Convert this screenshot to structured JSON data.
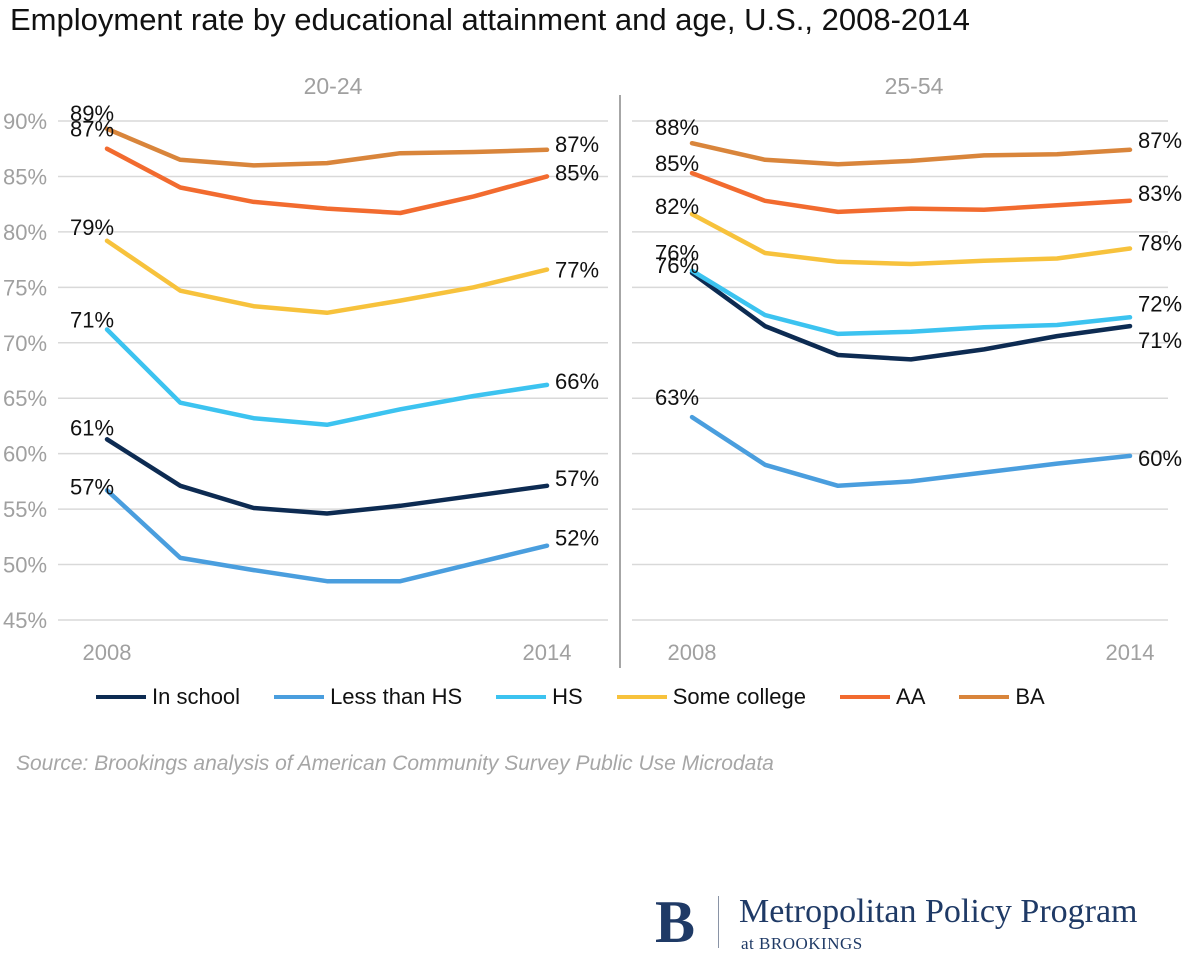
{
  "chart_data": {
    "type": "line",
    "title": "Employment rate by educational attainment and age, U.S., 2008-2014",
    "y_ticks": [
      "90%",
      "85%",
      "80%",
      "75%",
      "70%",
      "65%",
      "60%",
      "55%",
      "50%",
      "45%"
    ],
    "ylim": [
      45,
      90
    ],
    "years": [
      2008,
      2009,
      2010,
      2011,
      2012,
      2013,
      2014
    ],
    "series": [
      {
        "name": "In school",
        "color": "#0d2b52"
      },
      {
        "name": "Less than HS",
        "color": "#4a9ede"
      },
      {
        "name": "HS",
        "color": "#3cc3f0"
      },
      {
        "name": "Some college",
        "color": "#f7c23c"
      },
      {
        "name": "AA",
        "color": "#f26b2f"
      },
      {
        "name": "BA",
        "color": "#d9853b"
      }
    ],
    "panels": [
      {
        "title": "20-24",
        "x_start_label": "2008",
        "x_end_label": "2014",
        "values": {
          "In school": [
            61.3,
            57.1,
            55.1,
            54.6,
            55.3,
            56.2,
            57.1
          ],
          "Less than HS": [
            56.7,
            50.6,
            49.5,
            48.5,
            48.5,
            50.1,
            51.7
          ],
          "HS": [
            71.2,
            64.6,
            63.2,
            62.6,
            64.0,
            65.2,
            66.2
          ],
          "Some college": [
            79.2,
            74.7,
            73.3,
            72.7,
            73.8,
            75.0,
            76.6
          ],
          "AA": [
            87.5,
            84.0,
            82.7,
            82.1,
            81.7,
            83.2,
            85.0
          ],
          "BA": [
            89.3,
            86.5,
            86.0,
            86.2,
            87.1,
            87.2,
            87.4
          ]
        },
        "start_labels": {
          "In school": "61%",
          "Less than HS": "57%",
          "HS": "71%",
          "Some college": "79%",
          "AA": "87%",
          "BA": "89%"
        },
        "end_labels": {
          "In school": "57%",
          "Less than HS": "52%",
          "HS": "66%",
          "Some college": "77%",
          "AA": "85%",
          "BA": "87%"
        }
      },
      {
        "title": "25-54",
        "x_start_label": "2008",
        "x_end_label": "2014",
        "values": {
          "In school": [
            76.3,
            71.5,
            68.9,
            68.5,
            69.4,
            70.6,
            71.5
          ],
          "Less than HS": [
            63.3,
            59.0,
            57.1,
            57.5,
            58.3,
            59.1,
            59.8
          ],
          "HS": [
            76.5,
            72.5,
            70.8,
            71.0,
            71.4,
            71.6,
            72.3
          ],
          "Some college": [
            81.6,
            78.1,
            77.3,
            77.1,
            77.4,
            77.6,
            78.5
          ],
          "AA": [
            85.3,
            82.8,
            81.8,
            82.1,
            82.0,
            82.4,
            82.8
          ],
          "BA": [
            88.0,
            86.5,
            86.1,
            86.4,
            86.9,
            87.0,
            87.4
          ]
        },
        "start_labels": {
          "In school": "76%",
          "Less than HS": "63%",
          "HS": "76%",
          "Some college": "82%",
          "AA": "85%",
          "BA": "88%"
        },
        "end_labels": {
          "In school": "71%",
          "Less than HS": "60%",
          "HS": "72%",
          "Some college": "78%",
          "AA": "83%",
          "BA": "87%"
        }
      }
    ]
  },
  "legend": [
    {
      "name": "In school",
      "color": "#0d2b52"
    },
    {
      "name": "Less than HS",
      "color": "#4a9ede"
    },
    {
      "name": "HS",
      "color": "#3cc3f0"
    },
    {
      "name": "Some college",
      "color": "#f7c23c"
    },
    {
      "name": "AA",
      "color": "#f26b2f"
    },
    {
      "name": "BA",
      "color": "#d9853b"
    }
  ],
  "source": "Source: Brookings analysis of American Community Survey Public Use Microdata",
  "branding": {
    "logo_letter": "B",
    "name": "Metropolitan Policy Program",
    "sub": "at BROOKINGS"
  }
}
